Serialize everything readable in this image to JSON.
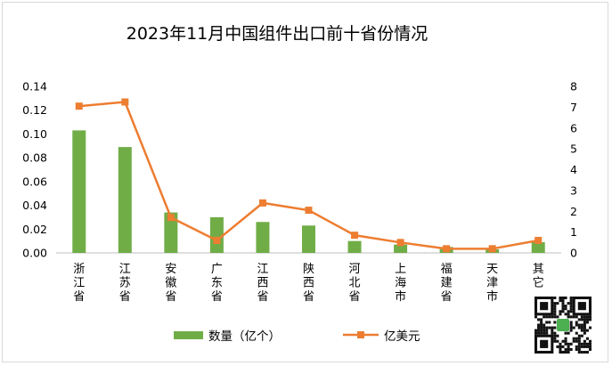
{
  "chart_data": {
    "type": "bar",
    "title": "2023年11月中国组件出口前十省份情况",
    "categories": [
      "浙江省",
      "江苏省",
      "安徽省",
      "广东省",
      "江西省",
      "陕西省",
      "河北省",
      "上海市",
      "福建省",
      "天津市",
      "其它"
    ],
    "series": [
      {
        "name": "数量（亿个）",
        "type": "bar",
        "axis": "left",
        "color": "#70ad47",
        "values": [
          0.103,
          0.089,
          0.034,
          0.03,
          0.026,
          0.023,
          0.01,
          0.007,
          0.005,
          0.003,
          0.009
        ]
      },
      {
        "name": "亿美元",
        "type": "line",
        "axis": "right",
        "color": "#ed7d31",
        "values": [
          7.05,
          7.25,
          1.7,
          0.6,
          2.4,
          2.05,
          0.85,
          0.5,
          0.2,
          0.2,
          0.6
        ]
      }
    ],
    "y_left": {
      "range": [
        0,
        0.14
      ],
      "ticks": [
        "0.00",
        "0.02",
        "0.04",
        "0.06",
        "0.08",
        "0.10",
        "0.12",
        "0.14"
      ]
    },
    "y_right": {
      "range": [
        0,
        8
      ],
      "ticks": [
        "0",
        "1",
        "2",
        "3",
        "4",
        "5",
        "6",
        "7",
        "8"
      ]
    },
    "grid": false,
    "legend": "bottom"
  },
  "colors": {
    "bar": "#70ad47",
    "line": "#ed7d31",
    "axis": "#bfbfbf"
  }
}
